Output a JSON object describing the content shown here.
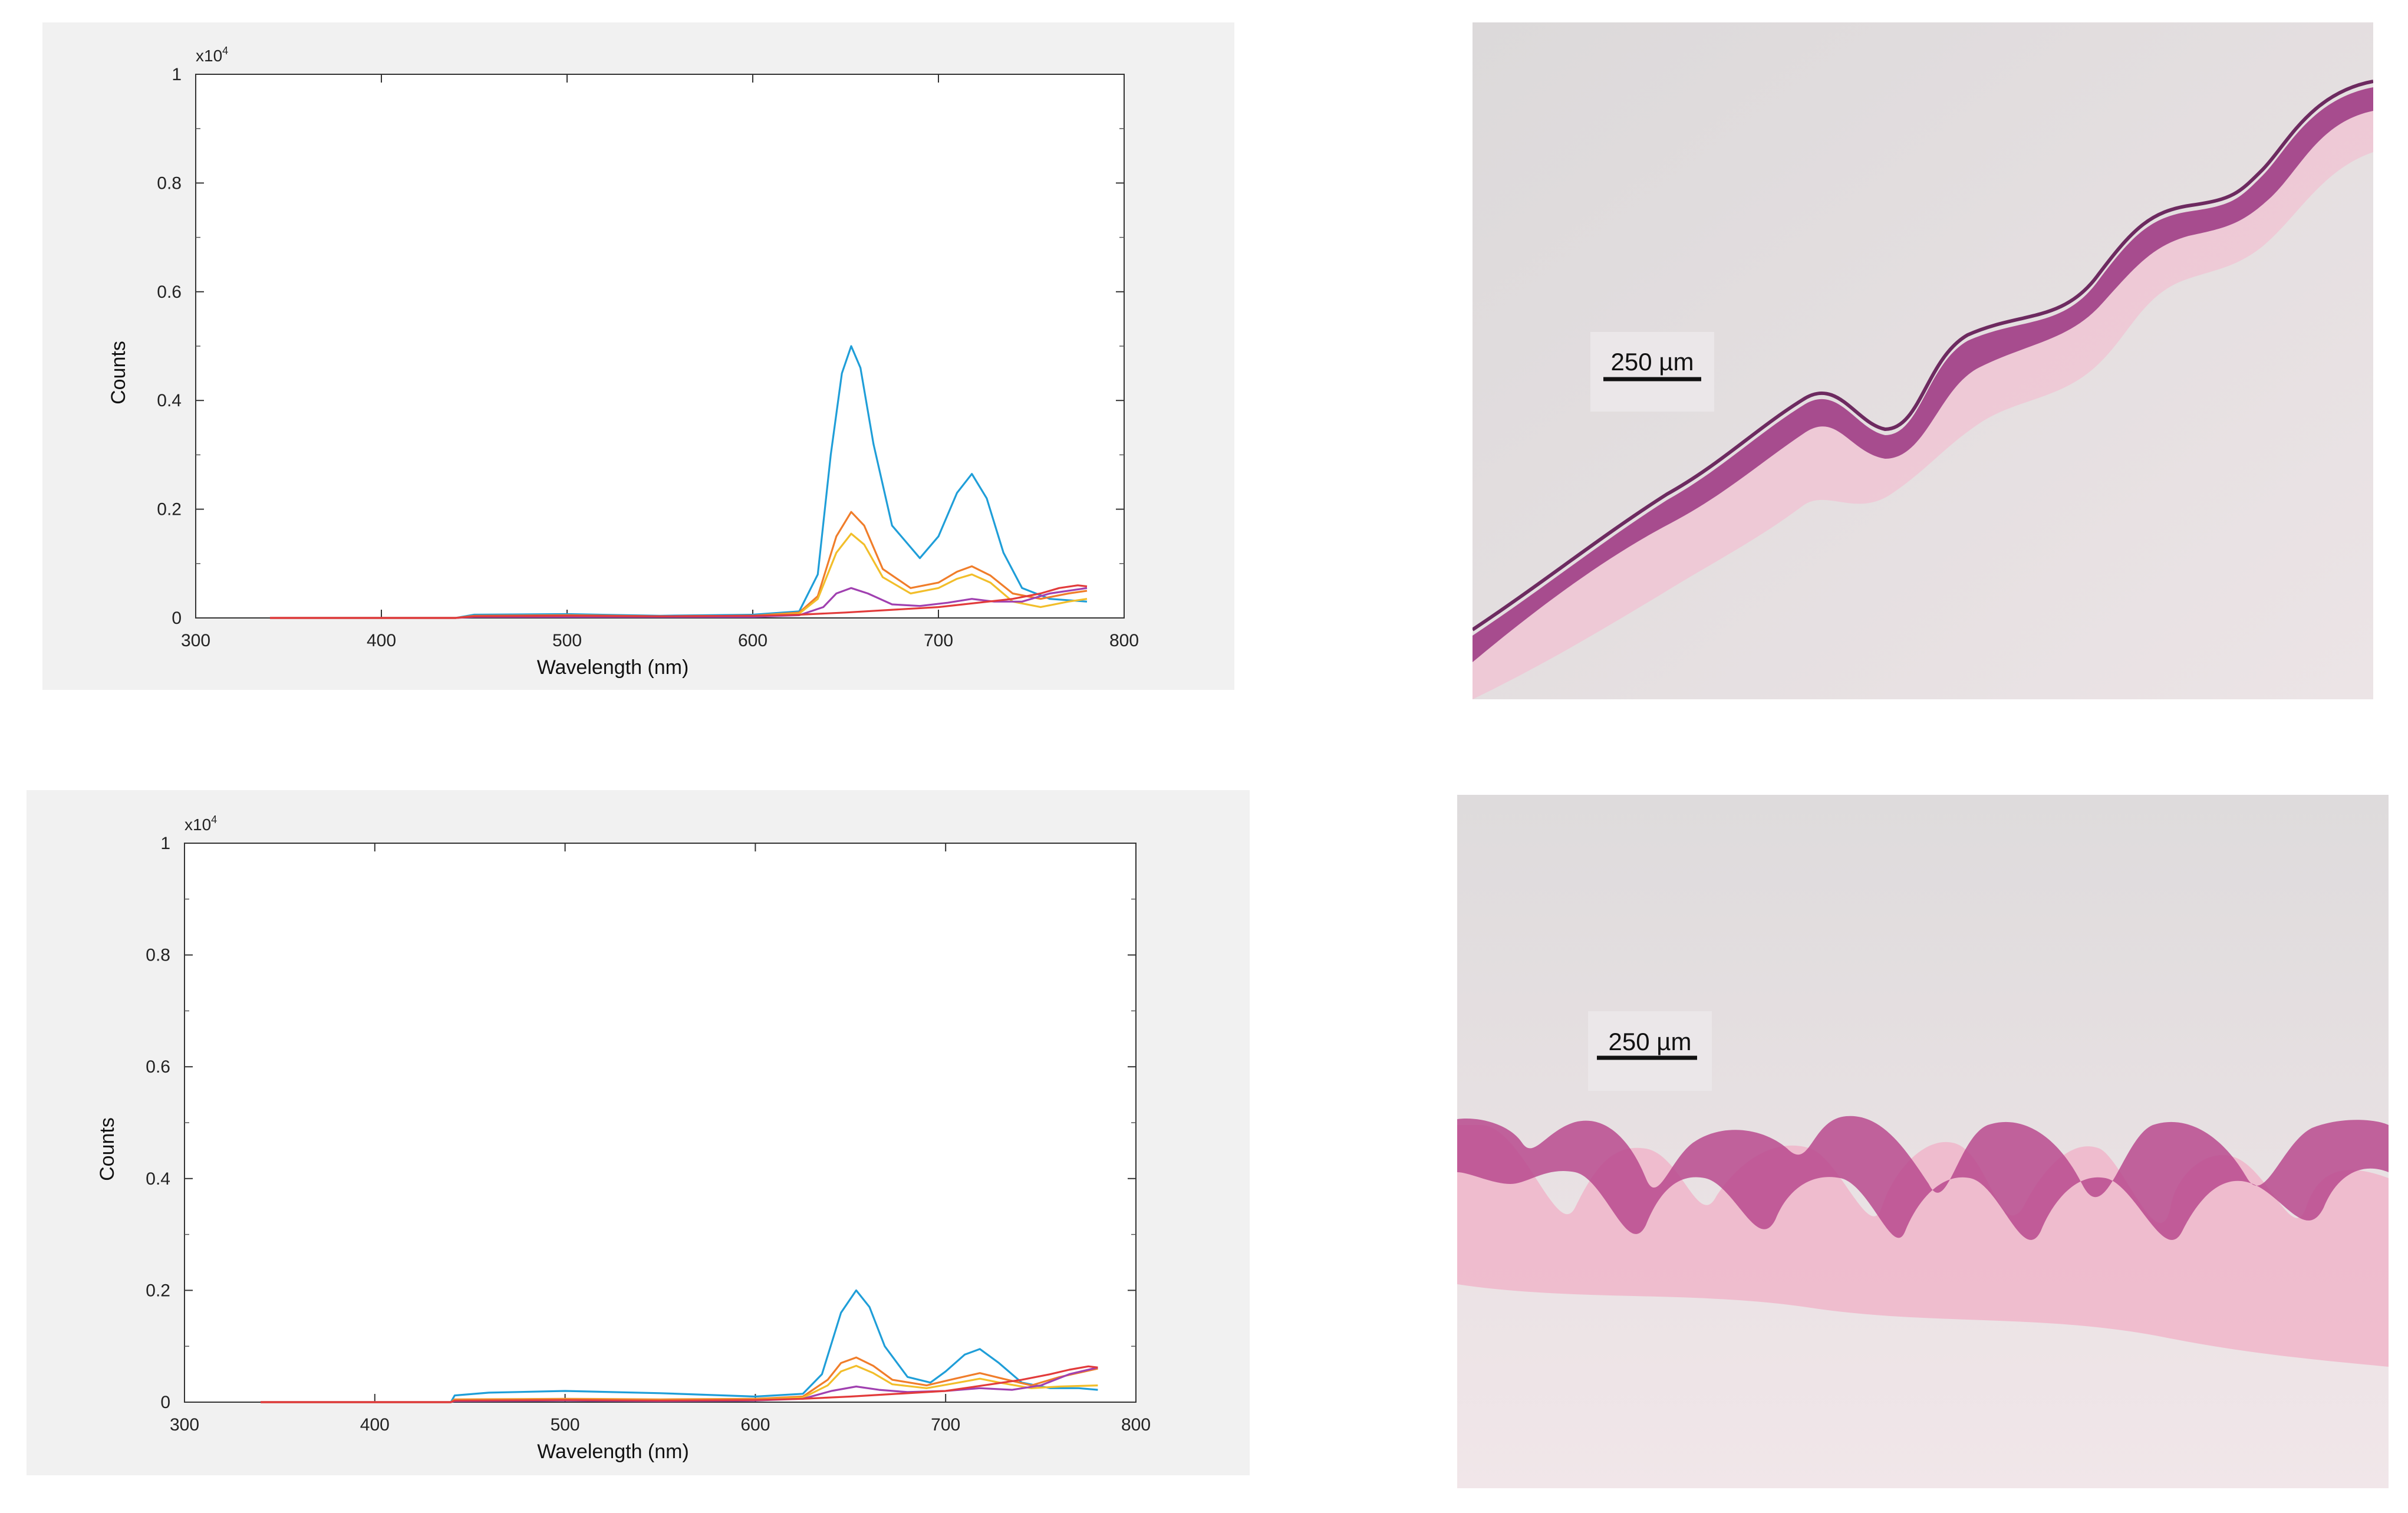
{
  "chart_data": [
    {
      "type": "line",
      "title": "",
      "xlabel": "Wavelength (nm)",
      "ylabel": "Counts",
      "y_multiplier_label": "x10",
      "y_multiplier_exp": "4",
      "xlim": [
        300,
        800
      ],
      "ylim": [
        0,
        1
      ],
      "x_ticks": [
        300,
        400,
        500,
        600,
        700,
        800
      ],
      "y_ticks": [
        0,
        0.2,
        0.4,
        0.6,
        0.8,
        1
      ],
      "y_tick_labels": [
        "0",
        "0.2",
        "0.4",
        "0.6",
        "0.8",
        "1"
      ],
      "grid": false,
      "legend": "none",
      "series": [
        {
          "color": "#1f9ed8",
          "x": [
            340,
            440,
            450,
            500,
            550,
            600,
            625,
            635,
            642,
            648,
            653,
            658,
            665,
            675,
            690,
            700,
            710,
            718,
            726,
            735,
            745,
            760,
            780
          ],
          "y": [
            0,
            0,
            0.006,
            0.007,
            0.004,
            0.006,
            0.012,
            0.08,
            0.3,
            0.45,
            0.5,
            0.46,
            0.32,
            0.17,
            0.11,
            0.15,
            0.23,
            0.265,
            0.22,
            0.12,
            0.055,
            0.035,
            0.03
          ]
        },
        {
          "color": "#f07d2a",
          "x": [
            340,
            440,
            450,
            500,
            550,
            600,
            625,
            635,
            645,
            653,
            660,
            670,
            685,
            700,
            710,
            718,
            728,
            740,
            755,
            770,
            780
          ],
          "y": [
            0,
            0,
            0.004,
            0.005,
            0.003,
            0.004,
            0.01,
            0.04,
            0.15,
            0.195,
            0.17,
            0.09,
            0.055,
            0.065,
            0.085,
            0.095,
            0.078,
            0.045,
            0.035,
            0.045,
            0.05
          ]
        },
        {
          "color": "#f2be2a",
          "x": [
            340,
            440,
            450,
            500,
            550,
            600,
            625,
            635,
            645,
            653,
            660,
            670,
            685,
            700,
            710,
            718,
            728,
            740,
            755,
            770,
            780
          ],
          "y": [
            0,
            0,
            0.003,
            0.004,
            0.003,
            0.004,
            0.008,
            0.035,
            0.12,
            0.155,
            0.135,
            0.075,
            0.045,
            0.055,
            0.072,
            0.08,
            0.065,
            0.03,
            0.02,
            0.03,
            0.035
          ]
        },
        {
          "color": "#a040b0",
          "x": [
            340,
            440,
            450,
            500,
            550,
            600,
            625,
            638,
            645,
            653,
            662,
            675,
            690,
            705,
            718,
            730,
            745,
            760,
            780
          ],
          "y": [
            0,
            0,
            0.002,
            0.002,
            0.002,
            0.002,
            0.005,
            0.02,
            0.045,
            0.055,
            0.045,
            0.025,
            0.022,
            0.028,
            0.035,
            0.03,
            0.03,
            0.045,
            0.055
          ]
        },
        {
          "color": "#e23b3b",
          "x": [
            340,
            440,
            450,
            500,
            550,
            600,
            625,
            650,
            700,
            740,
            755,
            765,
            775,
            780
          ],
          "y": [
            0,
            0,
            0.003,
            0.004,
            0.003,
            0.004,
            0.006,
            0.01,
            0.02,
            0.035,
            0.045,
            0.055,
            0.06,
            0.058
          ]
        }
      ]
    },
    {
      "type": "line",
      "title": "",
      "xlabel": "Wavelength (nm)",
      "ylabel": "Counts",
      "y_multiplier_label": "x10",
      "y_multiplier_exp": "4",
      "xlim": [
        300,
        800
      ],
      "ylim": [
        0,
        1
      ],
      "x_ticks": [
        300,
        400,
        500,
        600,
        700,
        800
      ],
      "y_ticks": [
        0,
        0.2,
        0.4,
        0.6,
        0.8,
        1
      ],
      "y_tick_labels": [
        "0",
        "0.2",
        "0.4",
        "0.6",
        "0.8",
        "1"
      ],
      "grid": false,
      "legend": "none",
      "series": [
        {
          "color": "#1f9ed8",
          "x": [
            340,
            440,
            442,
            460,
            500,
            550,
            600,
            625,
            635,
            645,
            653,
            660,
            668,
            680,
            692,
            700,
            710,
            718,
            728,
            740,
            755,
            770,
            780
          ],
          "y": [
            0,
            0,
            0.012,
            0.017,
            0.02,
            0.016,
            0.01,
            0.015,
            0.05,
            0.16,
            0.2,
            0.17,
            0.1,
            0.045,
            0.035,
            0.055,
            0.085,
            0.095,
            0.07,
            0.035,
            0.025,
            0.025,
            0.022
          ]
        },
        {
          "color": "#f07d2a",
          "x": [
            340,
            440,
            442,
            500,
            550,
            600,
            625,
            638,
            645,
            653,
            662,
            672,
            690,
            705,
            718,
            730,
            745,
            760,
            780
          ],
          "y": [
            0,
            0,
            0.005,
            0.006,
            0.005,
            0.006,
            0.01,
            0.04,
            0.07,
            0.08,
            0.065,
            0.04,
            0.03,
            0.042,
            0.052,
            0.042,
            0.03,
            0.045,
            0.06
          ]
        },
        {
          "color": "#f2be2a",
          "x": [
            340,
            440,
            442,
            500,
            550,
            600,
            625,
            638,
            645,
            653,
            662,
            672,
            690,
            705,
            718,
            730,
            745,
            760,
            780
          ],
          "y": [
            0,
            0,
            0.004,
            0.005,
            0.004,
            0.005,
            0.008,
            0.03,
            0.055,
            0.065,
            0.052,
            0.032,
            0.025,
            0.034,
            0.042,
            0.034,
            0.025,
            0.028,
            0.03
          ]
        },
        {
          "color": "#a040b0",
          "x": [
            340,
            440,
            442,
            500,
            550,
            600,
            625,
            640,
            653,
            665,
            680,
            700,
            718,
            735,
            750,
            765,
            780
          ],
          "y": [
            0,
            0,
            0.002,
            0.003,
            0.002,
            0.003,
            0.006,
            0.02,
            0.028,
            0.022,
            0.018,
            0.02,
            0.025,
            0.022,
            0.03,
            0.05,
            0.062
          ]
        },
        {
          "color": "#e23b3b",
          "x": [
            340,
            440,
            442,
            500,
            550,
            600,
            625,
            650,
            700,
            740,
            755,
            765,
            775,
            780
          ],
          "y": [
            0,
            0,
            0.003,
            0.004,
            0.003,
            0.004,
            0.006,
            0.01,
            0.02,
            0.04,
            0.05,
            0.058,
            0.064,
            0.062
          ]
        }
      ]
    }
  ],
  "micrographs": [
    {
      "scale_bar_label": "250 µm"
    },
    {
      "scale_bar_label": "250 µm"
    }
  ]
}
